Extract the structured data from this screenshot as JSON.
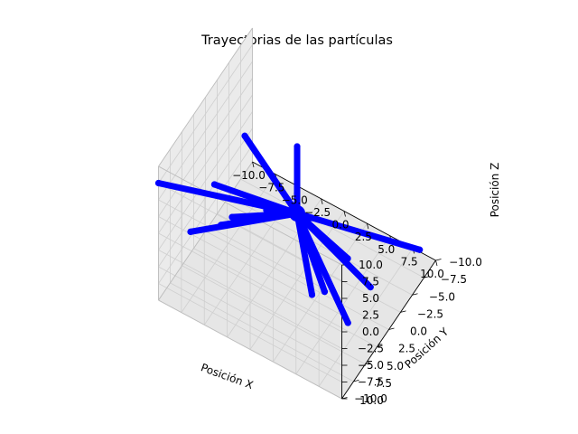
{
  "chart_data": {
    "type": "line",
    "projection": "3d",
    "title": "Trayectorias de las partículas",
    "xlabel": "Posición X",
    "ylabel": "Posición Y",
    "zlabel": "Posición Z",
    "xlim": [
      -10,
      10
    ],
    "ylim": [
      -10,
      10
    ],
    "zlim": [
      -10,
      10
    ],
    "xticks": [
      "−10.0",
      "−7.5",
      "−5.0",
      "−2.5",
      "0.0",
      "2.5",
      "5.0",
      "7.5",
      "10.0"
    ],
    "yticks": [
      "−10.0",
      "−7.5",
      "−5.0",
      "−2.5",
      "0.0",
      "2.5",
      "5.0",
      "7.5",
      "10.0"
    ],
    "zticks": [
      "−10.0",
      "−7.5",
      "−5.0",
      "−2.5",
      "0.0",
      "2.5",
      "5.0",
      "7.5",
      "10.0"
    ],
    "grid": true,
    "series_color": "#0000ff",
    "series_marker": "circle",
    "origin": [
      0,
      0,
      0
    ],
    "endpoints": [
      [
        -10.0,
        10.0,
        7.5
      ],
      [
        10.0,
        8.7,
        0.0
      ],
      [
        -1.5,
        -6.0,
        -8.0
      ],
      [
        8.5,
        -9.5,
        -9.0
      ],
      [
        -9.3,
        -7.0,
        -2.5
      ],
      [
        -6.5,
        10.0,
        2.8
      ],
      [
        0.0,
        0.0,
        10.0
      ],
      [
        1.0,
        8.5,
        10.0
      ],
      [
        3.5,
        5.5,
        4.5
      ],
      [
        3.0,
        0.0,
        -9.5
      ],
      [
        7.8,
        -0.4,
        -5.7
      ],
      [
        -3.0,
        8.0,
        5.5
      ],
      [
        -6.0,
        4.5,
        -1.5
      ],
      [
        4.5,
        -2.0,
        -5.5
      ],
      [
        -8.0,
        2.0,
        0.5
      ],
      [
        4.7,
        6.0,
        -2.5
      ]
    ]
  }
}
